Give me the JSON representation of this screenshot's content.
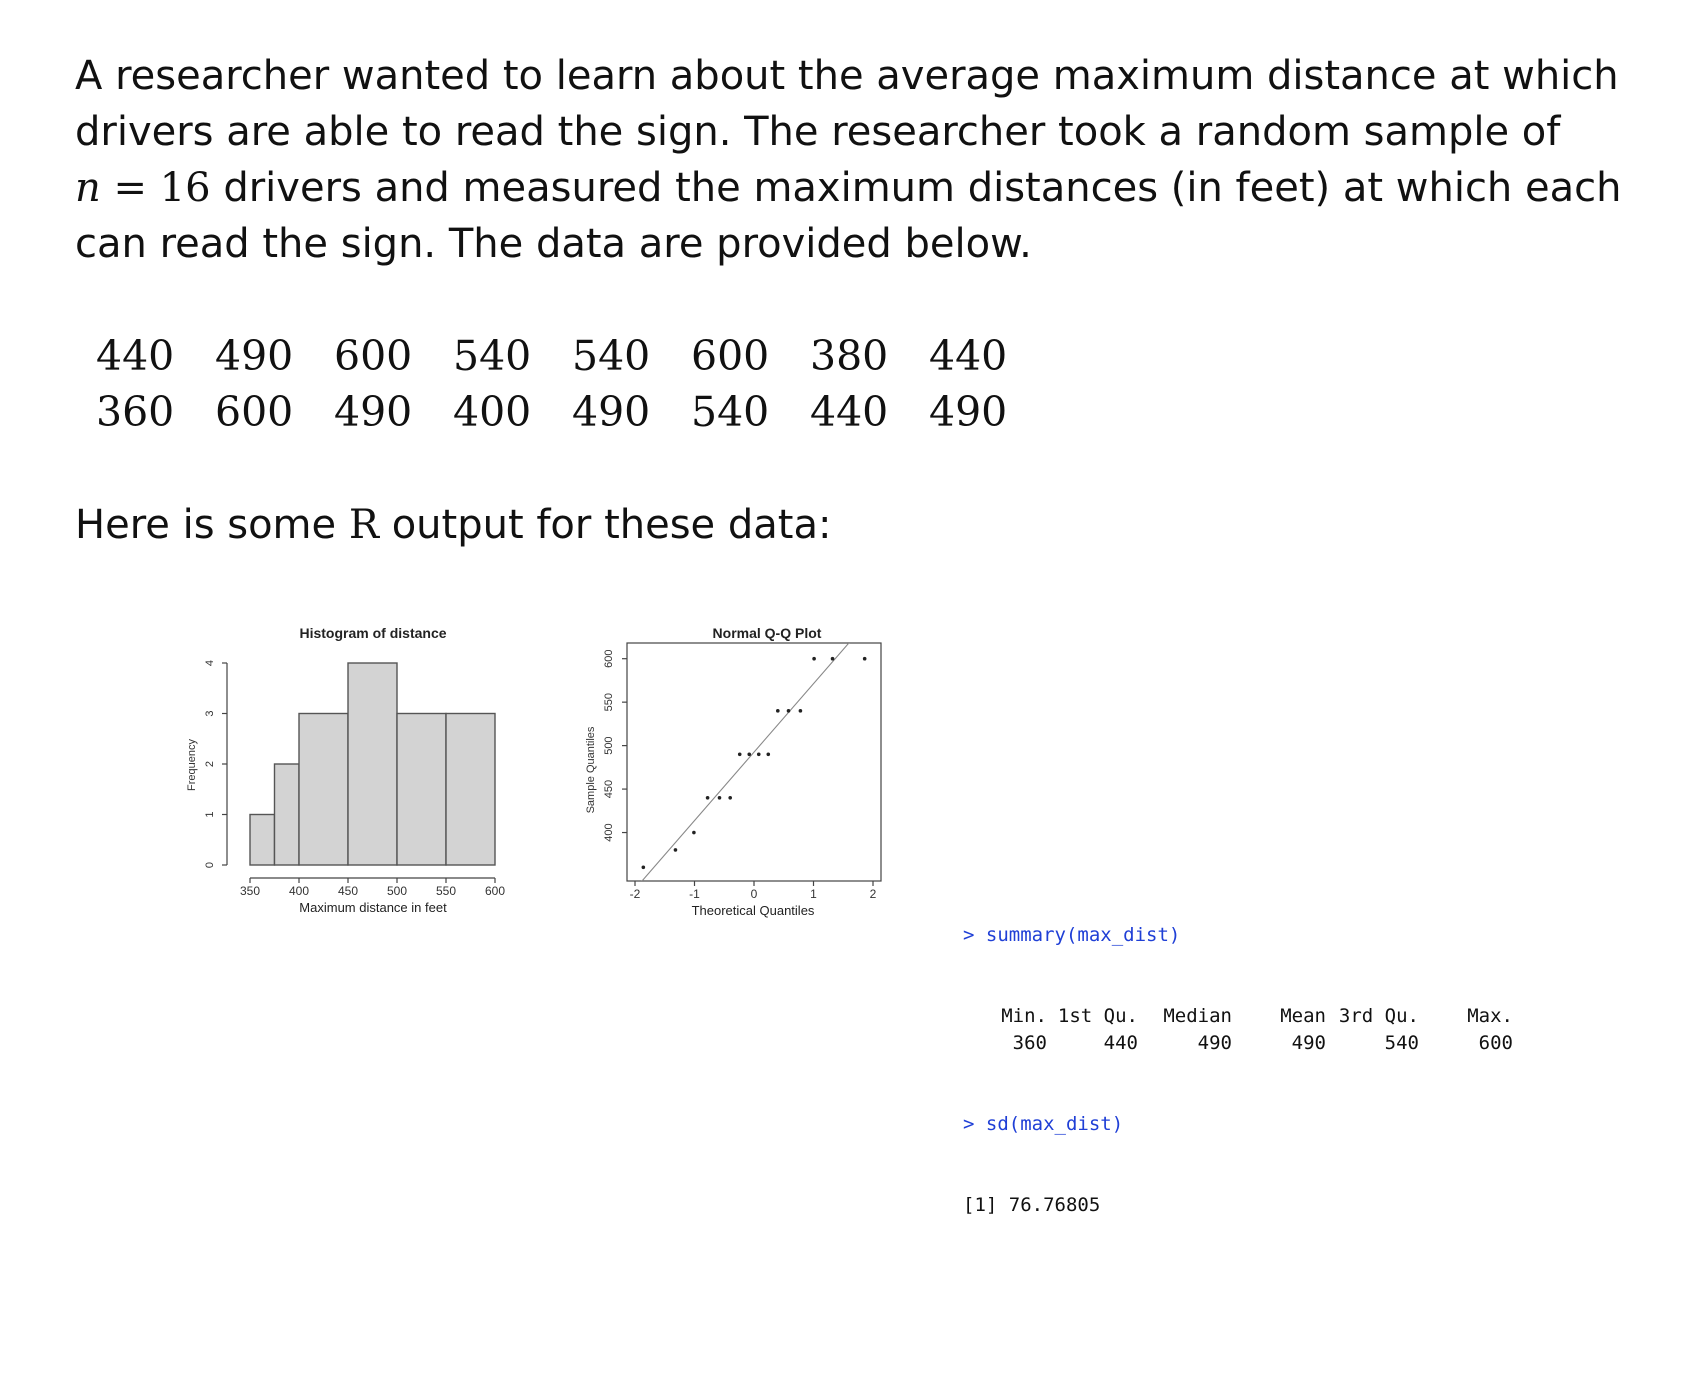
{
  "problem": {
    "line1": "A researcher wanted to learn about the average maximum distance at which",
    "line2": "drivers are able to read the sign.  The researcher took a random sample of",
    "n_symbol": "n",
    "equals": "=",
    "n_value": "16",
    "line3_rest": " drivers and measured the maximum distances (in feet) at which each",
    "line4": "can read the sign.  The data are provided below."
  },
  "data_rows": [
    [
      "440",
      "490",
      "600",
      "540",
      "540",
      "600",
      "380",
      "440"
    ],
    [
      "360",
      "600",
      "490",
      "400",
      "490",
      "540",
      "440",
      "490"
    ]
  ],
  "r_intro": {
    "before": "Here is some ",
    "r": "R",
    "after": " output for these data:"
  },
  "chart_data": [
    {
      "type": "bar",
      "title": "Histogram of distance",
      "xlabel": "Maximum distance in feet",
      "ylabel": "Frequency",
      "bins": [
        [
          350,
          375
        ],
        [
          375,
          400
        ],
        [
          400,
          450
        ],
        [
          450,
          500
        ],
        [
          500,
          550
        ],
        [
          550,
          600
        ]
      ],
      "values": [
        1,
        2,
        3,
        4,
        3,
        3
      ],
      "xticks": [
        "350",
        "400",
        "450",
        "500",
        "550",
        "600"
      ],
      "yticks": [
        "0",
        "1",
        "2",
        "3",
        "4"
      ],
      "xlim": [
        350,
        600
      ],
      "ylim": [
        0,
        4
      ]
    },
    {
      "type": "scatter",
      "title": "Normal Q-Q Plot",
      "xlabel": "Theoretical Quantiles",
      "ylabel": "Sample Quantiles",
      "x": [
        -1.86,
        -1.32,
        -1.01,
        -0.78,
        -0.58,
        -0.4,
        -0.24,
        -0.08,
        0.08,
        0.24,
        0.4,
        0.58,
        0.78,
        1.01,
        1.32,
        1.86
      ],
      "y": [
        360,
        380,
        400,
        440,
        440,
        440,
        490,
        490,
        490,
        490,
        540,
        540,
        540,
        600,
        600,
        600
      ],
      "reference_line": [
        [
          -2,
          335
        ],
        [
          2,
          650
        ]
      ],
      "xticks": [
        "-2",
        "-1",
        "0",
        "1",
        "2"
      ],
      "yticks": [
        "400",
        "450",
        "500",
        "550",
        "600"
      ],
      "xlim": [
        -2,
        2
      ],
      "ylim": [
        350,
        610
      ]
    }
  ],
  "console": {
    "cmd1": "> summary(max_dist)",
    "headers": [
      "Min.",
      "1st Qu.",
      "Median",
      "Mean",
      "3rd Qu.",
      "Max."
    ],
    "values": [
      "360",
      "440",
      "490",
      "490",
      "540",
      "600"
    ],
    "cmd2": "> sd(max_dist)",
    "sd_output": "[1] 76.76805"
  },
  "colors": {
    "bar_fill": "#d3d3d3",
    "bar_stroke": "#555555",
    "command_text": "#1f3fd6"
  }
}
